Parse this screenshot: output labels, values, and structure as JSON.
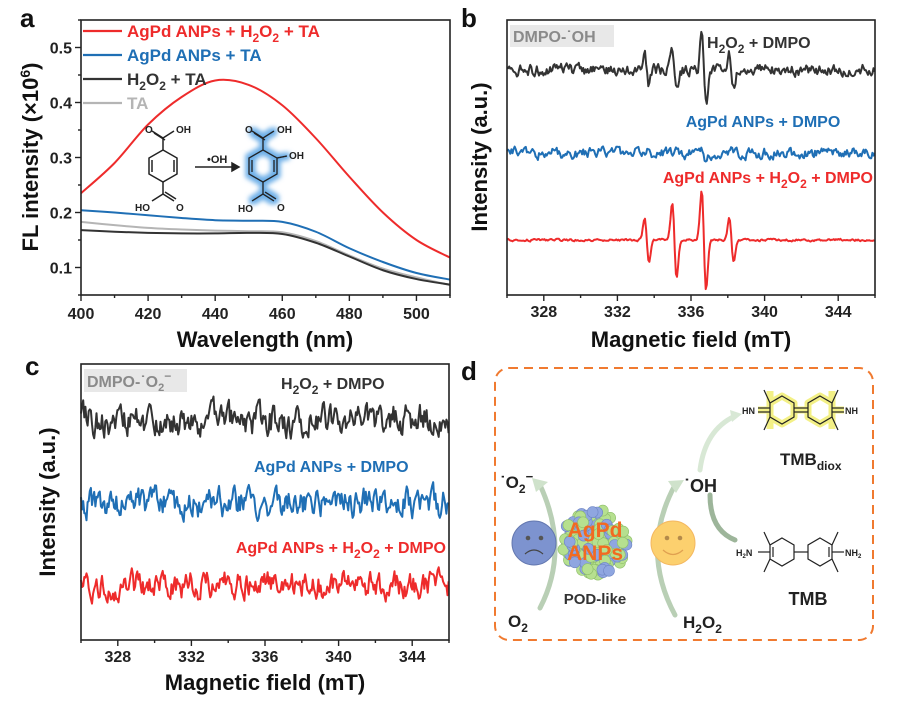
{
  "panels": {
    "a": "a",
    "b": "b",
    "c": "c",
    "d": "d"
  },
  "colors": {
    "red": "#ee2b2b",
    "blue": "#1f6fb5",
    "black": "#333333",
    "gray": "#b5b5b5",
    "orange": "#f07a30"
  },
  "chart_data": [
    {
      "panel": "a",
      "type": "line",
      "xlabel": "Wavelength (nm)",
      "ylabel": "FL intensity (×10",
      "ylabel_exp": "6",
      "ylabel_close": ")",
      "xlim": [
        400,
        510
      ],
      "ylim": [
        0.05,
        0.55
      ],
      "xticks": [
        "400",
        "420",
        "440",
        "460",
        "480",
        "500"
      ],
      "yticks": [
        "0.1",
        "0.2",
        "0.3",
        "0.4",
        "0.5"
      ],
      "grid": false,
      "legend_position": "top-left",
      "x": [
        400,
        410,
        420,
        430,
        440,
        450,
        460,
        470,
        480,
        490,
        500,
        510
      ],
      "series": [
        {
          "name": "AgPd ANPs + H2O2 + TA",
          "legend_parts": [
            "AgPd ANPs + H",
            "2",
            "O",
            "2",
            " + TA"
          ],
          "color": "#ee2b2b",
          "values": [
            0.235,
            0.29,
            0.36,
            0.41,
            0.44,
            0.432,
            0.395,
            0.335,
            0.265,
            0.2,
            0.15,
            0.118
          ]
        },
        {
          "name": "AgPd ANPs + TA",
          "legend_parts": [
            "AgPd ANPs + TA"
          ],
          "color": "#1f6fb5",
          "values": [
            0.204,
            0.2,
            0.195,
            0.19,
            0.186,
            0.185,
            0.183,
            0.165,
            0.135,
            0.11,
            0.09,
            0.078
          ]
        },
        {
          "name": "H2O2 + TA",
          "legend_parts": [
            "H",
            "2",
            "O",
            "2",
            " + TA"
          ],
          "color": "#333333",
          "values": [
            0.168,
            0.165,
            0.163,
            0.162,
            0.162,
            0.163,
            0.161,
            0.145,
            0.12,
            0.095,
            0.079,
            0.069
          ]
        },
        {
          "name": "TA",
          "legend_parts": [
            "TA"
          ],
          "color": "#b5b5b5",
          "values": [
            0.183,
            0.177,
            0.172,
            0.169,
            0.167,
            0.166,
            0.164,
            0.148,
            0.122,
            0.098,
            0.082,
            0.068
          ]
        }
      ],
      "inset": {
        "reagent_label": "•OH",
        "oh": "OH",
        "ho": "HO",
        "o": "O"
      }
    },
    {
      "panel": "b",
      "type": "line",
      "tag": "DMPO-˙OH",
      "xlabel": "Magnetic field (mT)",
      "ylabel": "Intensity (a.u.)",
      "xlim": [
        326,
        346
      ],
      "xticks": [
        "328",
        "332",
        "336",
        "340",
        "344"
      ],
      "grid": false,
      "series": [
        {
          "name": "H2O2 + DMPO",
          "label_parts": [
            "H",
            "2",
            "O",
            "2",
            " + DMPO"
          ],
          "color": "#333333",
          "peaks_mT": [
            333.6,
            335.1,
            336.7,
            338.2
          ],
          "peak_rel_amplitude": [
            0.6,
            0.9,
            1.6,
            0.7
          ],
          "noise": "moderate"
        },
        {
          "name": "AgPd ANPs + DMPO",
          "label_parts": [
            "AgPd ANPs + DMPO"
          ],
          "color": "#1f6fb5",
          "peaks_mT": [
            336.7
          ],
          "peak_rel_amplitude": [
            0.35
          ],
          "noise": "moderate"
        },
        {
          "name": "AgPd ANPs + H2O2 + DMPO",
          "label_parts": [
            "AgPd ANPs + H",
            "2",
            "O",
            "2",
            " + DMPO"
          ],
          "color": "#ee2b2b",
          "peaks_mT": [
            333.6,
            335.1,
            336.7,
            338.2
          ],
          "peak_rel_amplitude": [
            1.0,
            1.7,
            2.3,
            1.0
          ],
          "noise": "low"
        }
      ]
    },
    {
      "panel": "c",
      "type": "line",
      "tag": "DMPO-˙O",
      "tag_sub": "2",
      "tag_sup": "−",
      "xlabel": "Magnetic field (mT)",
      "ylabel": "Intensity (a.u.)",
      "xlim": [
        326,
        346
      ],
      "xticks": [
        "328",
        "332",
        "336",
        "340",
        "344"
      ],
      "grid": false,
      "series": [
        {
          "name": "H2O2 + DMPO",
          "label_parts": [
            "H",
            "2",
            "O",
            "2",
            " + DMPO"
          ],
          "color": "#333333",
          "peaks_mT": [],
          "noise": "high"
        },
        {
          "name": "AgPd ANPs + DMPO",
          "label_parts": [
            "AgPd ANPs + DMPO"
          ],
          "color": "#1f6fb5",
          "peaks_mT": [],
          "noise": "high"
        },
        {
          "name": "AgPd ANPs + H2O2 + DMPO",
          "label_parts": [
            "AgPd ANPs + H",
            "2",
            "O",
            "2",
            " + DMPO"
          ],
          "color": "#ee2b2b",
          "peaks_mT": [],
          "noise": "high"
        }
      ]
    }
  ],
  "diagram": {
    "nanoparticle_line1": "AgPd",
    "nanoparticle_line2": "ANPs",
    "pod_like": "POD-like",
    "o2": "O",
    "o2_sub": "2",
    "superoxide": "˙O",
    "superoxide_sub": "2",
    "superoxide_sup": "−",
    "h2o2_parts": [
      "H",
      "2",
      "O",
      "2"
    ],
    "hydroxyl": "˙OH",
    "tmb_diox": "TMB",
    "tmb_diox_sub": "diox",
    "tmb": "TMB",
    "hn": "HN",
    "nh": "NH",
    "h2n": "H",
    "h2n_sub": "2",
    "h2n_n": "N",
    "nh2": "NH",
    "nh2_sub": "2"
  }
}
